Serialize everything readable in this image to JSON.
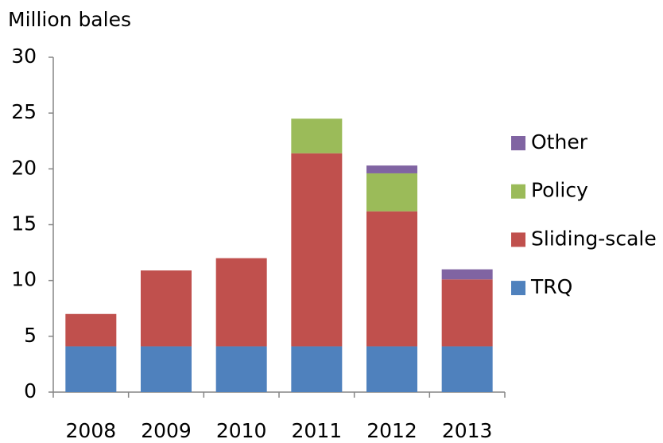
{
  "chart_data": {
    "type": "stacked_bar",
    "y_axis_label": "Million bales",
    "categories": [
      "2008",
      "2009",
      "2010",
      "2011",
      "2012",
      "2013"
    ],
    "series": [
      {
        "name": "TRQ",
        "color": "#4f81bd",
        "values": [
          4.1,
          4.1,
          4.1,
          4.1,
          4.1,
          4.1
        ]
      },
      {
        "name": "Sliding-scale",
        "color": "#c0504d",
        "values": [
          2.9,
          6.8,
          7.9,
          17.3,
          12.1,
          6.0
        ]
      },
      {
        "name": "Policy",
        "color": "#9bbb59",
        "values": [
          0,
          0,
          0,
          3.1,
          3.4,
          0
        ]
      },
      {
        "name": "Other",
        "color": "#8064a2",
        "values": [
          0,
          0,
          0,
          0,
          0.7,
          0.9
        ]
      }
    ],
    "ylim": [
      0,
      30
    ],
    "yticks": [
      0,
      5,
      10,
      15,
      20,
      25,
      30
    ],
    "grid": false,
    "legend": "right"
  }
}
